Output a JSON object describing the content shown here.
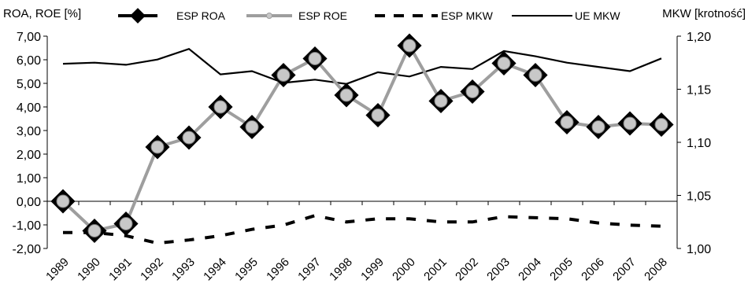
{
  "chart_data": {
    "type": "line",
    "left_axis_label": "ROA, ROE [%]",
    "right_axis_label": "MKW [krotność]",
    "categories": [
      "1989",
      "1990",
      "1991",
      "1992",
      "1993",
      "1994",
      "1995",
      "1996",
      "1997",
      "1998",
      "1999",
      "2000",
      "2001",
      "2002",
      "2003",
      "2004",
      "2005",
      "2006",
      "2007",
      "2008"
    ],
    "left_ticks": [
      "7,00",
      "6,00",
      "5,00",
      "4,00",
      "3,00",
      "2,00",
      "1,00",
      "0,00",
      "-1,00",
      "-2,00"
    ],
    "right_ticks": [
      "1,20",
      "1,15",
      "1,10",
      "1,05",
      "1,00"
    ],
    "ylim_left": [
      -2,
      7
    ],
    "ylim_right": [
      1.0,
      1.2
    ],
    "grid": false,
    "legend_position": "top",
    "series": [
      {
        "name": "ESP ROA",
        "axis": "left",
        "style": "black-line-diamond",
        "values": [
          0.0,
          -1.25,
          -0.95,
          2.3,
          2.7,
          4.0,
          3.15,
          5.35,
          6.05,
          4.5,
          3.65,
          6.6,
          4.25,
          4.65,
          5.85,
          5.35,
          3.35,
          3.15,
          3.3,
          3.25
        ]
      },
      {
        "name": "ESP ROE",
        "axis": "left",
        "style": "gray-line-dot",
        "values": [
          0.0,
          -1.25,
          -0.95,
          2.3,
          2.7,
          4.0,
          3.15,
          5.35,
          6.05,
          4.5,
          3.65,
          6.6,
          4.25,
          4.65,
          5.85,
          5.35,
          3.35,
          3.15,
          3.3,
          3.25
        ]
      },
      {
        "name": "ESP MKW",
        "axis": "right",
        "style": "dashed",
        "values": [
          1.015,
          1.015,
          1.012,
          1.005,
          1.008,
          1.012,
          1.018,
          1.022,
          1.031,
          1.025,
          1.028,
          1.028,
          1.025,
          1.025,
          1.03,
          1.029,
          1.028,
          1.024,
          1.022,
          1.021
        ]
      },
      {
        "name": "UE MKW",
        "axis": "right",
        "style": "solid",
        "values": [
          1.174,
          1.175,
          1.173,
          1.178,
          1.188,
          1.164,
          1.167,
          1.156,
          1.159,
          1.155,
          1.166,
          1.162,
          1.171,
          1.169,
          1.186,
          1.181,
          1.175,
          1.171,
          1.167,
          1.179
        ]
      }
    ],
    "colors": {
      "roa": "#000000",
      "roe": "#9e9e9e",
      "roe_marker": "#c8c8c8",
      "mkw": "#000000"
    }
  }
}
